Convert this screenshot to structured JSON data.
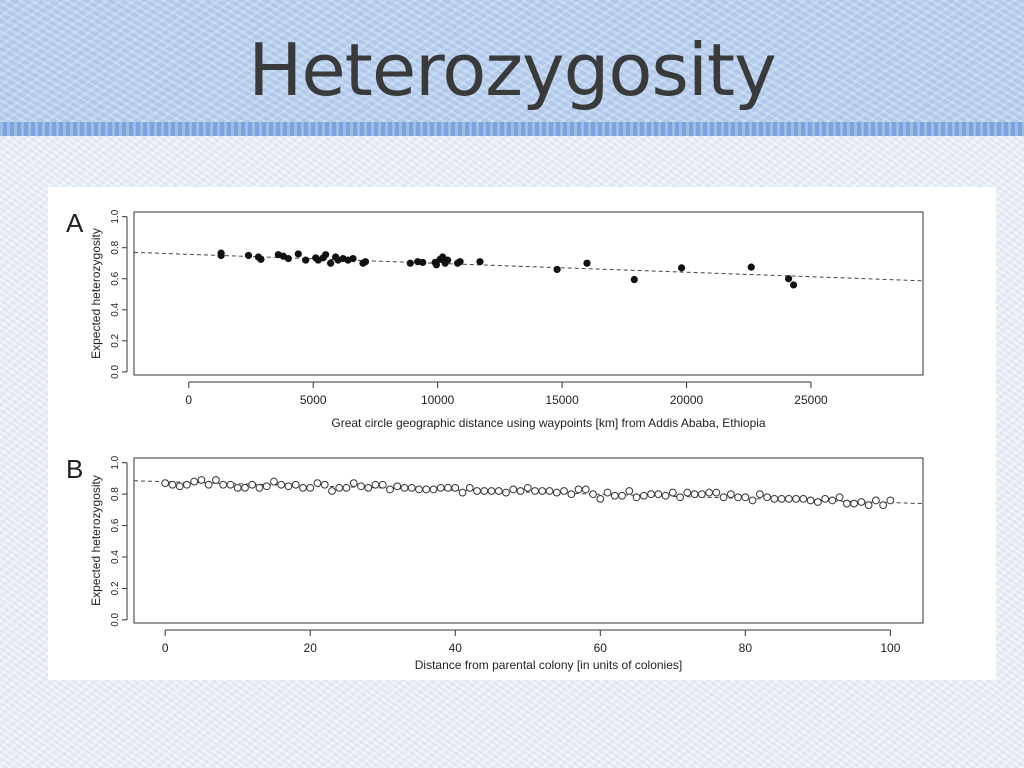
{
  "slide": {
    "title": "Heterozygosity"
  },
  "chart_data": [
    {
      "panel_label": "A",
      "type": "scatter",
      "xlabel": "Great circle geographic distance using waypoints [km] from Addis Ababa, Ethiopia",
      "ylabel": "Expected heterozygosity",
      "xlim": [
        -2200,
        29500
      ],
      "ylim": [
        -0.02,
        1.03
      ],
      "x_ticks": [
        0,
        5000,
        10000,
        15000,
        20000,
        25000
      ],
      "y_ticks": [
        0.0,
        0.2,
        0.4,
        0.6,
        0.8,
        1.0
      ],
      "x_tick_labels": [
        "0",
        "5000",
        "10000",
        "15000",
        "20000",
        "25000"
      ],
      "y_tick_labels": [
        "0.0",
        "0.2",
        "0.4",
        "0.6",
        "0.8",
        "1.0"
      ],
      "marker": "filled-circle",
      "grid": false,
      "trend_line": {
        "style": "dashed",
        "from": [
          -2200,
          0.77
        ],
        "to": [
          29500,
          0.587
        ]
      },
      "points": [
        [
          1300,
          0.765
        ],
        [
          1300,
          0.75
        ],
        [
          2400,
          0.75
        ],
        [
          2800,
          0.74
        ],
        [
          2900,
          0.725
        ],
        [
          3600,
          0.755
        ],
        [
          3800,
          0.745
        ],
        [
          4000,
          0.73
        ],
        [
          4400,
          0.76
        ],
        [
          4700,
          0.72
        ],
        [
          5100,
          0.735
        ],
        [
          5200,
          0.72
        ],
        [
          5400,
          0.735
        ],
        [
          5500,
          0.755
        ],
        [
          5700,
          0.7
        ],
        [
          5900,
          0.74
        ],
        [
          6000,
          0.72
        ],
        [
          6200,
          0.73
        ],
        [
          6400,
          0.72
        ],
        [
          6600,
          0.73
        ],
        [
          7000,
          0.7
        ],
        [
          7100,
          0.71
        ],
        [
          8900,
          0.7
        ],
        [
          9200,
          0.71
        ],
        [
          9400,
          0.705
        ],
        [
          9900,
          0.705
        ],
        [
          9950,
          0.69
        ],
        [
          10100,
          0.725
        ],
        [
          10200,
          0.74
        ],
        [
          10300,
          0.7
        ],
        [
          10400,
          0.72
        ],
        [
          10800,
          0.7
        ],
        [
          10900,
          0.71
        ],
        [
          11700,
          0.71
        ],
        [
          14800,
          0.66
        ],
        [
          16000,
          0.7
        ],
        [
          17900,
          0.595
        ],
        [
          19800,
          0.67
        ],
        [
          22600,
          0.675
        ],
        [
          24100,
          0.6
        ],
        [
          24300,
          0.56
        ]
      ]
    },
    {
      "panel_label": "B",
      "type": "scatter",
      "xlabel": "Distance from parental colony [in units of colonies]",
      "ylabel": "Expected heterozygosity",
      "xlim": [
        -4.3,
        104.5
      ],
      "ylim": [
        -0.02,
        1.03
      ],
      "x_ticks": [
        0,
        20,
        40,
        60,
        80,
        100
      ],
      "y_ticks": [
        0.0,
        0.2,
        0.4,
        0.6,
        0.8,
        1.0
      ],
      "x_tick_labels": [
        "0",
        "20",
        "40",
        "60",
        "80",
        "100"
      ],
      "y_tick_labels": [
        "0.0",
        "0.2",
        "0.4",
        "0.6",
        "0.8",
        "1.0"
      ],
      "marker": "open-circle",
      "grid": false,
      "trend_line": {
        "style": "dashed",
        "from": [
          -4.3,
          0.885
        ],
        "to": [
          104.5,
          0.74
        ]
      },
      "points": [
        [
          0,
          0.87
        ],
        [
          1,
          0.86
        ],
        [
          2,
          0.85
        ],
        [
          3,
          0.86
        ],
        [
          4,
          0.88
        ],
        [
          5,
          0.89
        ],
        [
          6,
          0.86
        ],
        [
          7,
          0.89
        ],
        [
          8,
          0.86
        ],
        [
          9,
          0.86
        ],
        [
          10,
          0.84
        ],
        [
          11,
          0.84
        ],
        [
          12,
          0.86
        ],
        [
          13,
          0.84
        ],
        [
          14,
          0.85
        ],
        [
          15,
          0.88
        ],
        [
          16,
          0.86
        ],
        [
          17,
          0.85
        ],
        [
          18,
          0.86
        ],
        [
          19,
          0.84
        ],
        [
          20,
          0.84
        ],
        [
          21,
          0.87
        ],
        [
          22,
          0.86
        ],
        [
          23,
          0.82
        ],
        [
          24,
          0.84
        ],
        [
          25,
          0.84
        ],
        [
          26,
          0.87
        ],
        [
          27,
          0.85
        ],
        [
          28,
          0.84
        ],
        [
          29,
          0.86
        ],
        [
          30,
          0.86
        ],
        [
          31,
          0.83
        ],
        [
          32,
          0.85
        ],
        [
          33,
          0.84
        ],
        [
          34,
          0.84
        ],
        [
          35,
          0.83
        ],
        [
          36,
          0.83
        ],
        [
          37,
          0.83
        ],
        [
          38,
          0.84
        ],
        [
          39,
          0.84
        ],
        [
          40,
          0.84
        ],
        [
          41,
          0.81
        ],
        [
          42,
          0.84
        ],
        [
          43,
          0.82
        ],
        [
          44,
          0.82
        ],
        [
          45,
          0.82
        ],
        [
          46,
          0.82
        ],
        [
          47,
          0.81
        ],
        [
          48,
          0.83
        ],
        [
          49,
          0.82
        ],
        [
          50,
          0.84
        ],
        [
          51,
          0.82
        ],
        [
          52,
          0.82
        ],
        [
          53,
          0.82
        ],
        [
          54,
          0.81
        ],
        [
          55,
          0.82
        ],
        [
          56,
          0.8
        ],
        [
          57,
          0.83
        ],
        [
          58,
          0.83
        ],
        [
          59,
          0.8
        ],
        [
          60,
          0.77
        ],
        [
          61,
          0.81
        ],
        [
          62,
          0.79
        ],
        [
          63,
          0.79
        ],
        [
          64,
          0.82
        ],
        [
          65,
          0.78
        ],
        [
          66,
          0.79
        ],
        [
          67,
          0.8
        ],
        [
          68,
          0.8
        ],
        [
          69,
          0.79
        ],
        [
          70,
          0.81
        ],
        [
          71,
          0.78
        ],
        [
          72,
          0.81
        ],
        [
          73,
          0.8
        ],
        [
          74,
          0.8
        ],
        [
          75,
          0.81
        ],
        [
          76,
          0.81
        ],
        [
          77,
          0.78
        ],
        [
          78,
          0.8
        ],
        [
          79,
          0.78
        ],
        [
          80,
          0.78
        ],
        [
          81,
          0.76
        ],
        [
          82,
          0.8
        ],
        [
          83,
          0.78
        ],
        [
          84,
          0.77
        ],
        [
          85,
          0.77
        ],
        [
          86,
          0.77
        ],
        [
          87,
          0.77
        ],
        [
          88,
          0.77
        ],
        [
          89,
          0.76
        ],
        [
          90,
          0.75
        ],
        [
          91,
          0.77
        ],
        [
          92,
          0.76
        ],
        [
          93,
          0.78
        ],
        [
          94,
          0.74
        ],
        [
          95,
          0.74
        ],
        [
          96,
          0.75
        ],
        [
          97,
          0.73
        ],
        [
          98,
          0.76
        ],
        [
          99,
          0.73
        ],
        [
          100,
          0.76
        ]
      ]
    }
  ]
}
